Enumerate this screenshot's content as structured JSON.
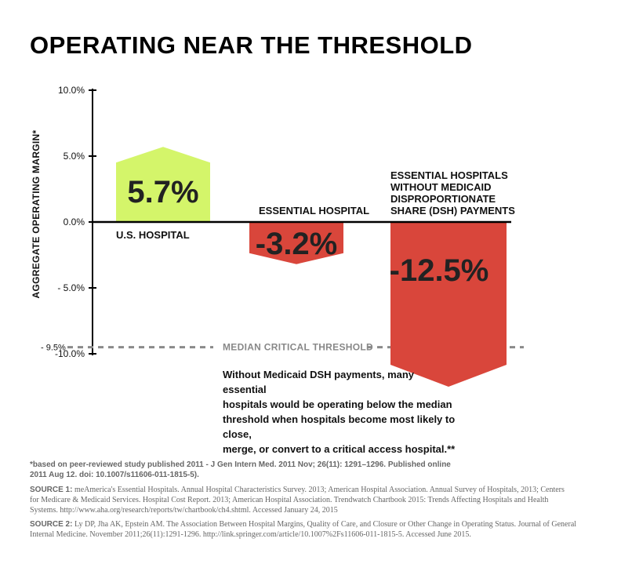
{
  "chart_data": {
    "type": "bar",
    "title": "OPERATING NEAR THE THRESHOLD",
    "ylabel": "AGGREGATE OPERATING MARGIN*",
    "ylim": [
      -10,
      10
    ],
    "y_ticks": [
      "10.0%",
      "5.0%",
      "0.0%",
      "- 5.0%",
      "-10.0%"
    ],
    "y_tick_values": [
      10,
      5,
      0,
      -5,
      -10
    ],
    "categories": [
      "U.S. HOSPITAL",
      "ESSENTIAL HOSPITAL",
      "ESSENTIAL HOSPITALS WITHOUT MEDICAID DISPROPORTIONATE SHARE (DSH) PAYMENTS"
    ],
    "category_lines": [
      [
        "U.S. HOSPITAL"
      ],
      [
        "ESSENTIAL HOSPITAL"
      ],
      [
        "ESSENTIAL HOSPITALS",
        "WITHOUT MEDICAID",
        "DISPROPORTIONATE",
        "SHARE (DSH) PAYMENTS"
      ]
    ],
    "values": [
      5.7,
      -3.2,
      -12.5
    ],
    "value_labels": [
      "5.7%",
      "-3.2%",
      "-12.5%"
    ],
    "colors": [
      "#d4f56a",
      "#d9463b",
      "#d9463b"
    ],
    "threshold": {
      "value": -9.5,
      "tick_label": "- 9.5%",
      "label": "MEDIAN CRITICAL THRESHOLD",
      "color": "#8a8a8a"
    },
    "grid": false,
    "legend": "none"
  },
  "annotation": "Without Medicaid DSH payments, many essential\nhospitals would be operating below the median\nthreshold when hospitals become most likely to close,\nmerge, or convert to a critical access hospital.**",
  "footnote": "*based on peer-reviewed study published 2011 -  J Gen Intern Med. 2011 Nov; 26(11): 1291–1296. Published online 2011 Aug 12. doi:  10.1007/s11606-011-1815-5).",
  "source1": {
    "label": "SOURCE 1:",
    "text": " meAmerica's Essential Hospitals. Annual Hospital Characteristics Survey. 2013; American Hospital Association. Annual Survey of Hospitals, 2013; Centers for Medicare & Medicaid Services. Hospital Cost Report. 2013; American Hospital Association. Trendwatch Chartbook 2015: Trends Affecting Hospitals and Health Systems. http://www.aha.org/research/reports/tw/chartbook/ch4.shtml. Accessed January 24, 2015"
  },
  "source2": {
    "label": "SOURCE 2:",
    "text": " Ly DP, Jha AK, Epstein AM. The Association Between Hospital Margins, Quality of Care, and Closure or Other Change in Operating Status. Journal of General Internal Medicine. November 2011;26(11):1291-1296. http://link.springer.com/article/10.1007%2Fs11606-011-1815-5. Accessed June 2015."
  }
}
